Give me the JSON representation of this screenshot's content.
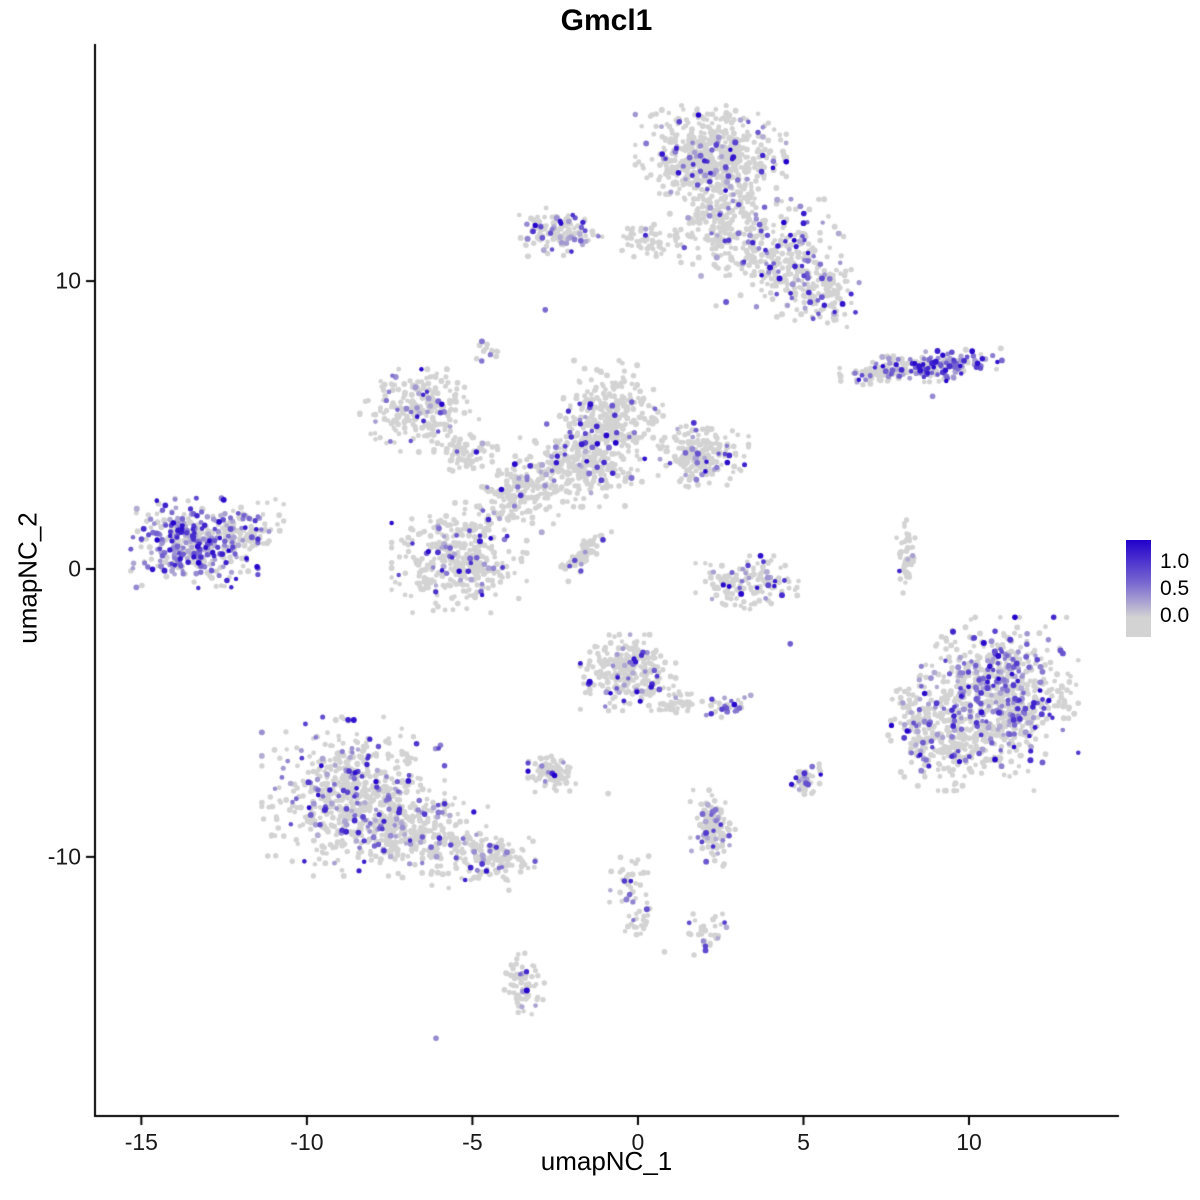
{
  "chart_data": {
    "type": "scatter",
    "title": "Gmcl1",
    "xlabel": "umapNC_1",
    "ylabel": "umapNC_2",
    "x_ticks": [
      -15,
      -10,
      -5,
      0,
      5,
      10
    ],
    "y_ticks": [
      10,
      0,
      -10
    ],
    "xlim": [
      -16.4,
      14.5
    ],
    "ylim": [
      -19.0,
      18.2
    ],
    "legend": {
      "ticks": [
        "1.0",
        "0.5",
        "0.0"
      ],
      "min": 0.0,
      "max": 1.0
    },
    "colors": {
      "low": "#d3d3d3",
      "high": "#2200cc",
      "axis": "#000000",
      "background": "#ffffff"
    },
    "clusters": [
      {
        "cx": 2.2,
        "cy": 14.3,
        "sx": 0.95,
        "sy": 0.75,
        "n": 600,
        "frac": 0.12
      },
      {
        "cx": 2.4,
        "cy": 12.1,
        "sx": 0.6,
        "sy": 0.8,
        "n": 220,
        "frac": 0.12
      },
      {
        "cx": 4.4,
        "cy": 10.8,
        "sx": 0.85,
        "sy": 0.85,
        "n": 280,
        "frac": 0.16
      },
      {
        "cx": 5.6,
        "cy": 9.6,
        "sx": 0.45,
        "sy": 0.5,
        "n": 110,
        "frac": 0.18
      },
      {
        "cx": -2.4,
        "cy": 11.7,
        "sx": 0.55,
        "sy": 0.35,
        "n": 140,
        "frac": 0.22
      },
      {
        "cx": 0.2,
        "cy": 11.4,
        "sx": 0.5,
        "sy": 0.28,
        "n": 55,
        "frac": 0.1
      },
      {
        "cx": -4.6,
        "cy": 7.6,
        "sx": 0.18,
        "sy": 0.2,
        "n": 15,
        "frac": 0.25
      },
      {
        "cx": 7.4,
        "cy": 6.85,
        "sx": 0.55,
        "sy": 0.22,
        "n": 90,
        "frac": 0.2,
        "angle": 0.05
      },
      {
        "cx": 9.2,
        "cy": 7.05,
        "sx": 0.75,
        "sy": 0.22,
        "n": 150,
        "frac": 0.65,
        "angle": 0.05
      },
      {
        "cx": -6.6,
        "cy": 5.5,
        "sx": 0.75,
        "sy": 0.6,
        "n": 250,
        "frac": 0.12
      },
      {
        "cx": -5.2,
        "cy": 4.1,
        "sx": 0.4,
        "sy": 0.35,
        "n": 70,
        "frac": 0.1
      },
      {
        "cx": -0.8,
        "cy": 5.2,
        "sx": 0.65,
        "sy": 0.85,
        "n": 330,
        "frac": 0.08
      },
      {
        "cx": -1.8,
        "cy": 3.6,
        "sx": 0.8,
        "sy": 0.6,
        "n": 280,
        "frac": 0.07
      },
      {
        "cx": -3.6,
        "cy": 2.6,
        "sx": 0.5,
        "sy": 0.55,
        "n": 160,
        "frac": 0.08
      },
      {
        "cx": 1.9,
        "cy": 3.95,
        "sx": 0.6,
        "sy": 0.5,
        "n": 210,
        "frac": 0.14
      },
      {
        "cx": -13.4,
        "cy": 0.9,
        "sx": 0.8,
        "sy": 0.65,
        "n": 430,
        "frac": 0.55
      },
      {
        "cx": -11.9,
        "cy": 1.3,
        "sx": 0.5,
        "sy": 0.5,
        "n": 80,
        "frac": 0.12
      },
      {
        "cx": -5.4,
        "cy": 0.4,
        "sx": 0.85,
        "sy": 0.8,
        "n": 380,
        "frac": 0.08
      },
      {
        "cx": -1.6,
        "cy": 0.55,
        "sx": 0.45,
        "sy": 0.12,
        "n": 75,
        "frac": 0.06,
        "angle": 0.9
      },
      {
        "cx": 3.3,
        "cy": -0.5,
        "sx": 0.65,
        "sy": 0.4,
        "n": 150,
        "frac": 0.14
      },
      {
        "cx": 8.1,
        "cy": 0.4,
        "sx": 0.12,
        "sy": 0.6,
        "n": 55,
        "frac": 0.08
      },
      {
        "cx": 10.9,
        "cy": -4.2,
        "sx": 1.0,
        "sy": 1.05,
        "n": 620,
        "frac": 0.3
      },
      {
        "cx": 9.8,
        "cy": -5.9,
        "sx": 0.9,
        "sy": 0.75,
        "n": 280,
        "frac": 0.12
      },
      {
        "cx": 8.4,
        "cy": -5.3,
        "sx": 0.35,
        "sy": 0.8,
        "n": 110,
        "frac": 0.3
      },
      {
        "cx": -0.3,
        "cy": -3.6,
        "sx": 0.6,
        "sy": 0.55,
        "n": 270,
        "frac": 0.13
      },
      {
        "cx": 1.1,
        "cy": -4.6,
        "sx": 0.35,
        "sy": 0.25,
        "n": 40,
        "frac": 0.1
      },
      {
        "cx": 2.7,
        "cy": -4.8,
        "sx": 0.3,
        "sy": 0.18,
        "n": 30,
        "frac": 0.3
      },
      {
        "cx": -2.6,
        "cy": -7.1,
        "sx": 0.3,
        "sy": 0.27,
        "n": 110,
        "frac": 0.05
      },
      {
        "cx": 5.1,
        "cy": -7.3,
        "sx": 0.22,
        "sy": 0.22,
        "n": 50,
        "frac": 0.3
      },
      {
        "cx": -8.6,
        "cy": -7.9,
        "sx": 1.15,
        "sy": 1.15,
        "n": 650,
        "frac": 0.2
      },
      {
        "cx": -6.4,
        "cy": -9.3,
        "sx": 1.1,
        "sy": 0.65,
        "n": 280,
        "frac": 0.12,
        "angle": -0.3
      },
      {
        "cx": -4.4,
        "cy": -10.0,
        "sx": 0.55,
        "sy": 0.4,
        "n": 130,
        "frac": 0.15,
        "angle": -0.3
      },
      {
        "cx": 2.3,
        "cy": -9.0,
        "sx": 0.3,
        "sy": 0.55,
        "n": 130,
        "frac": 0.2
      },
      {
        "cx": -0.3,
        "cy": -10.9,
        "sx": 0.3,
        "sy": 0.45,
        "n": 35,
        "frac": 0.1
      },
      {
        "cx": 0.1,
        "cy": -12.1,
        "sx": 0.25,
        "sy": 0.35,
        "n": 25,
        "frac": 0.1
      },
      {
        "cx": 2.1,
        "cy": -12.7,
        "sx": 0.3,
        "sy": 0.3,
        "n": 35,
        "frac": 0.25
      },
      {
        "cx": -3.5,
        "cy": -14.4,
        "sx": 0.28,
        "sy": 0.45,
        "n": 70,
        "frac": 0.12
      }
    ],
    "singles": [
      {
        "x": -2.8,
        "y": 9.0,
        "v": 0.5
      },
      {
        "x": -6.1,
        "y": -16.3,
        "v": 0.35
      },
      {
        "x": 0.8,
        "y": -13.3,
        "v": 0.0
      },
      {
        "x": 4.6,
        "y": -2.6,
        "v": 0.55
      },
      {
        "x": 8.9,
        "y": 6.0,
        "v": 0.35
      },
      {
        "x": -0.9,
        "y": -7.8,
        "v": 0.0
      },
      {
        "x": 2.7,
        "y": 3.7,
        "v": 0.95
      },
      {
        "x": 0.4,
        "y": -4.1,
        "v": 0.9
      }
    ]
  }
}
